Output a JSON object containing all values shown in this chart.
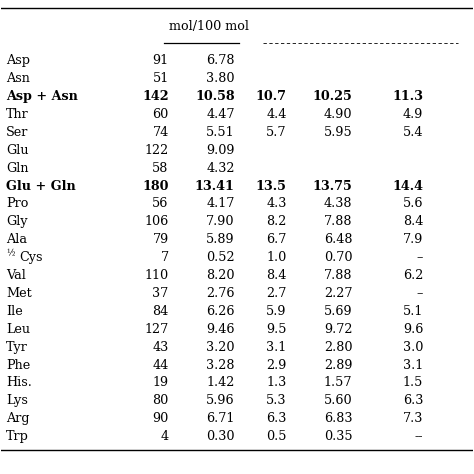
{
  "header_top": "mol/100 mol",
  "rows": [
    [
      "Asp",
      "91",
      "6.78",
      "",
      "",
      ""
    ],
    [
      "Asn",
      "51",
      "3.80",
      "",
      "",
      ""
    ],
    [
      "Asp + Asn",
      "142",
      "10.58",
      "10.7",
      "10.25",
      "11.3"
    ],
    [
      "Thr",
      "60",
      "4.47",
      "4.4",
      "4.90",
      "4.9"
    ],
    [
      "Ser",
      "74",
      "5.51",
      "5.7",
      "5.95",
      "5.4"
    ],
    [
      "Glu",
      "122",
      "9.09",
      "",
      "",
      ""
    ],
    [
      "Gln",
      "58",
      "4.32",
      "",
      "",
      ""
    ],
    [
      "Glu + Gln",
      "180",
      "13.41",
      "13.5",
      "13.75",
      "14.4"
    ],
    [
      "Pro",
      "56",
      "4.17",
      "4.3",
      "4.38",
      "5.6"
    ],
    [
      "Gly",
      "106",
      "7.90",
      "8.2",
      "7.88",
      "8.4"
    ],
    [
      "Ala",
      "79",
      "5.89",
      "6.7",
      "6.48",
      "7.9"
    ],
    [
      "½Cys",
      "7",
      "0.52",
      "1.0",
      "0.70",
      "–"
    ],
    [
      "Val",
      "110",
      "8.20",
      "8.4",
      "7.88",
      "6.2"
    ],
    [
      "Met",
      "37",
      "2.76",
      "2.7",
      "2.27",
      "–"
    ],
    [
      "Ile",
      "84",
      "6.26",
      "5.9",
      "5.69",
      "5.1"
    ],
    [
      "Leu",
      "127",
      "9.46",
      "9.5",
      "9.72",
      "9.6"
    ],
    [
      "Tyr",
      "43",
      "3.20",
      "3.1",
      "2.80",
      "3.0"
    ],
    [
      "Phe",
      "44",
      "3.28",
      "2.9",
      "2.89",
      "3.1"
    ],
    [
      "His.",
      "19",
      "1.42",
      "1.3",
      "1.57",
      "1.5"
    ],
    [
      "Lys",
      "80",
      "5.96",
      "5.3",
      "5.60",
      "6.3"
    ],
    [
      "Arg",
      "90",
      "6.71",
      "6.3",
      "6.83",
      "7.3"
    ],
    [
      "Trp",
      "4",
      "0.30",
      "0.5",
      "0.35",
      "--"
    ]
  ],
  "bold_rows": [
    2,
    7
  ],
  "col_aligns": [
    "left",
    "right",
    "right",
    "right",
    "right",
    "right"
  ],
  "text_color": "#000000",
  "fontsize": 9.2
}
